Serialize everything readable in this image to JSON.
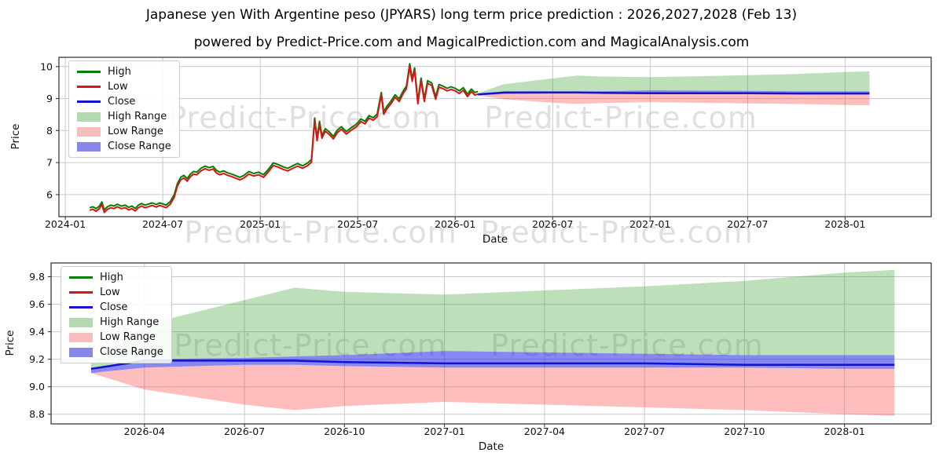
{
  "page": {
    "title": "Japanese yen With Argentine peso (JPYARS) long term price prediction : 2026,2027,2028 (Feb 13)",
    "subtitle": "powered by Predict-Price.com and MagicalPrediction.com and MagicalAnalysis.com",
    "watermark": "Predict-Price.com"
  },
  "colors": {
    "high_line": "#008000",
    "low_line": "#d81414",
    "close_line": "#1212cf",
    "high_range_fill": "#33a02c",
    "high_range_opacity": 0.32,
    "low_range_fill": "#ff3b3b",
    "low_range_opacity": 0.33,
    "close_range_fill": "#1e1ee6",
    "close_range_opacity": 0.53,
    "grid": "#c9c9c9",
    "spine": "#2b2b2b",
    "tick_text": "#111111"
  },
  "legend": {
    "items": [
      {
        "label": "High",
        "swatch": "line",
        "color": "#008000"
      },
      {
        "label": "Low",
        "swatch": "line",
        "color": "#d81414"
      },
      {
        "label": "Close",
        "swatch": "line",
        "color": "#1212cf"
      },
      {
        "label": "High Range",
        "swatch": "patch",
        "color": "#b4d8b0"
      },
      {
        "label": "Low Range",
        "swatch": "patch",
        "color": "#f8bebe"
      },
      {
        "label": "Close Range",
        "swatch": "patch",
        "color": "#8787ea"
      }
    ]
  },
  "chart_data": {
    "type": "line",
    "title": "Japanese yen With Argentine peso (JPYARS) long term price prediction : 2026,2027,2028 (Feb 13)",
    "xlabel": "Date",
    "ylabel": "Price",
    "x_unit": "months since 2024-01 (t=0 means 2024-01)",
    "grid": true,
    "legend_position": "upper left",
    "history": {
      "note": "High/Low/Close overlap visually; price_mid is the common path, high/low drawn at +/- half spread",
      "high_low_spread": 0.08,
      "x": [
        1.5,
        1.7,
        1.9,
        2.1,
        2.25,
        2.4,
        2.6,
        2.8,
        3.0,
        3.2,
        3.45,
        3.7,
        3.9,
        4.1,
        4.3,
        4.5,
        4.7,
        4.9,
        5.1,
        5.35,
        5.6,
        5.8,
        6.0,
        6.2,
        6.45,
        6.7,
        6.9,
        7.1,
        7.3,
        7.5,
        7.7,
        7.9,
        8.1,
        8.35,
        8.6,
        8.85,
        9.1,
        9.3,
        9.5,
        9.75,
        10.0,
        10.25,
        10.5,
        10.75,
        11.0,
        11.3,
        11.6,
        11.9,
        12.2,
        12.5,
        12.8,
        13.1,
        13.4,
        13.7,
        14.0,
        14.3,
        14.6,
        14.9,
        15.15,
        15.35,
        15.5,
        15.65,
        15.8,
        16.0,
        16.25,
        16.5,
        16.75,
        17.0,
        17.3,
        17.6,
        17.9,
        18.2,
        18.45,
        18.7,
        18.95,
        19.2,
        19.45,
        19.6,
        19.8,
        20.05,
        20.3,
        20.55,
        20.8,
        21.0,
        21.2,
        21.35,
        21.5,
        21.7,
        21.9,
        22.1,
        22.3,
        22.55,
        22.8,
        23.0,
        23.25,
        23.5,
        23.75,
        24.0,
        24.25,
        24.5,
        24.75,
        25.0,
        25.2,
        25.4
      ],
      "price_mid": [
        5.55,
        5.58,
        5.52,
        5.6,
        5.73,
        5.48,
        5.58,
        5.63,
        5.6,
        5.66,
        5.6,
        5.63,
        5.56,
        5.6,
        5.53,
        5.63,
        5.68,
        5.63,
        5.66,
        5.7,
        5.65,
        5.7,
        5.67,
        5.63,
        5.73,
        5.95,
        6.3,
        6.5,
        6.56,
        6.46,
        6.6,
        6.68,
        6.66,
        6.78,
        6.85,
        6.8,
        6.84,
        6.72,
        6.66,
        6.7,
        6.64,
        6.6,
        6.55,
        6.5,
        6.56,
        6.68,
        6.62,
        6.66,
        6.58,
        6.75,
        6.95,
        6.9,
        6.83,
        6.78,
        6.86,
        6.93,
        6.86,
        6.94,
        7.05,
        8.35,
        7.72,
        8.25,
        7.8,
        8.02,
        7.92,
        7.78,
        7.98,
        8.08,
        7.93,
        8.05,
        8.15,
        8.32,
        8.25,
        8.43,
        8.36,
        8.48,
        9.15,
        8.55,
        8.72,
        8.88,
        9.08,
        8.95,
        9.2,
        9.35,
        10.05,
        9.58,
        9.92,
        8.88,
        9.6,
        8.95,
        9.52,
        9.45,
        9.02,
        9.4,
        9.35,
        9.28,
        9.33,
        9.28,
        9.2,
        9.3,
        9.1,
        9.26,
        9.15,
        9.18
      ]
    },
    "forecast": {
      "note": "prediction from 2026-02-13 to 2028-02",
      "x": [
        25.4,
        27,
        30,
        31.5,
        33,
        36,
        39,
        42,
        45,
        48,
        49.5
      ],
      "high_range_top": [
        9.17,
        9.45,
        9.63,
        9.72,
        9.69,
        9.67,
        9.7,
        9.73,
        9.77,
        9.83,
        9.85
      ],
      "low_range_bottom": [
        9.1,
        8.98,
        8.87,
        8.83,
        8.86,
        8.89,
        8.87,
        8.85,
        8.83,
        8.8,
        8.79
      ],
      "close_range_top": [
        9.13,
        9.2,
        9.21,
        9.22,
        9.23,
        9.26,
        9.25,
        9.24,
        9.23,
        9.23,
        9.23
      ],
      "close_range_bottom": [
        9.1,
        9.14,
        9.16,
        9.16,
        9.15,
        9.14,
        9.14,
        9.14,
        9.14,
        9.13,
        9.13
      ],
      "close": [
        9.13,
        9.19,
        9.19,
        9.19,
        9.18,
        9.17,
        9.17,
        9.17,
        9.16,
        9.16,
        9.16
      ]
    },
    "panels": [
      {
        "name": "full-history-with-forecast",
        "xlabel": "Date",
        "ylabel": "Price",
        "xlim": [
          -0.39,
          53.3
        ],
        "ylim": [
          5.31,
          10.29
        ],
        "show_history": true,
        "xticks": [
          {
            "t": 0,
            "label": "2024-01"
          },
          {
            "t": 6,
            "label": "2024-07"
          },
          {
            "t": 12,
            "label": "2025-01"
          },
          {
            "t": 18,
            "label": "2025-07"
          },
          {
            "t": 24,
            "label": "2026-01"
          },
          {
            "t": 30,
            "label": "2026-07"
          },
          {
            "t": 36,
            "label": "2027-01"
          },
          {
            "t": 42,
            "label": "2027-07"
          },
          {
            "t": 48,
            "label": "2028-01"
          }
        ],
        "yticks": [
          {
            "v": 6,
            "label": "6"
          },
          {
            "v": 7,
            "label": "7"
          },
          {
            "v": 8,
            "label": "8"
          },
          {
            "v": 9,
            "label": "9"
          },
          {
            "v": 10,
            "label": "10"
          }
        ]
      },
      {
        "name": "forecast-detail",
        "xlabel": "Date",
        "ylabel": "Price",
        "xlim": [
          24.2,
          50.6
        ],
        "ylim": [
          8.73,
          9.9
        ],
        "show_history": false,
        "xticks": [
          {
            "t": 27,
            "label": "2026-04"
          },
          {
            "t": 30,
            "label": "2026-07"
          },
          {
            "t": 33,
            "label": "2026-10"
          },
          {
            "t": 36,
            "label": "2027-01"
          },
          {
            "t": 39,
            "label": "2027-04"
          },
          {
            "t": 42,
            "label": "2027-07"
          },
          {
            "t": 45,
            "label": "2027-10"
          },
          {
            "t": 48,
            "label": "2028-01"
          }
        ],
        "yticks": [
          {
            "v": 8.8,
            "label": "8.8"
          },
          {
            "v": 9.0,
            "label": "9.0"
          },
          {
            "v": 9.2,
            "label": "9.2"
          },
          {
            "v": 9.4,
            "label": "9.4"
          },
          {
            "v": 9.6,
            "label": "9.6"
          },
          {
            "v": 9.8,
            "label": "9.8"
          }
        ]
      }
    ]
  }
}
